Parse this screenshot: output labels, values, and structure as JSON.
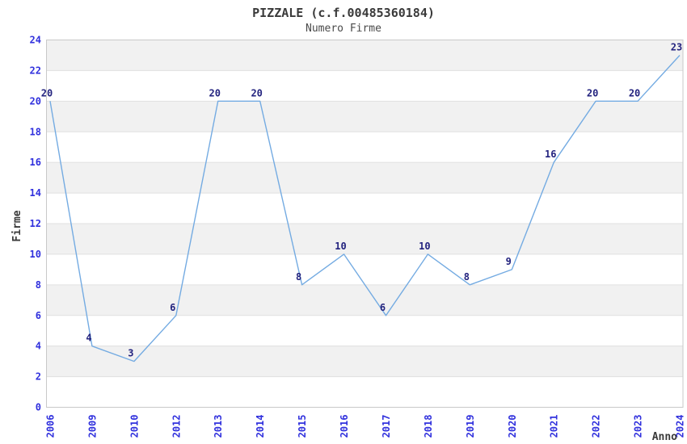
{
  "chart_data": {
    "type": "line",
    "title": "PIZZALE (c.f.00485360184)",
    "subtitle": "Numero Firme",
    "xlabel": "Anno",
    "ylabel": "Firme",
    "categories": [
      "2006",
      "2009",
      "2010",
      "2012",
      "2013",
      "2014",
      "2015",
      "2016",
      "2017",
      "2018",
      "2019",
      "2020",
      "2021",
      "2022",
      "2023",
      "2024"
    ],
    "values": [
      20,
      4,
      3,
      6,
      20,
      20,
      8,
      10,
      6,
      10,
      8,
      9,
      16,
      20,
      20,
      23
    ],
    "point_labels": [
      "20",
      "4",
      "3",
      "6",
      "20",
      "20",
      "8",
      "10",
      "6",
      "10",
      "8",
      "9",
      "16",
      "20",
      "20",
      "23"
    ],
    "ylim": [
      0,
      24
    ],
    "ytick_step": 2,
    "y_ticks": [
      0,
      2,
      4,
      6,
      8,
      10,
      12,
      14,
      16,
      18,
      20,
      22,
      24
    ],
    "grid": "horizontal-bands",
    "legend_position": "none",
    "markers": "none",
    "colors": {
      "line": "#74abe2",
      "tick_label": "#3030dd",
      "point_label": "#23237f",
      "band": "#f1f1f1",
      "gridline": "#e0e0e0",
      "plot_border": "#c9c9c9",
      "title": "#3a3a3a",
      "subtitle": "#4a4a4a",
      "axis_label": "#3a3a3a",
      "background": "#ffffff"
    }
  }
}
